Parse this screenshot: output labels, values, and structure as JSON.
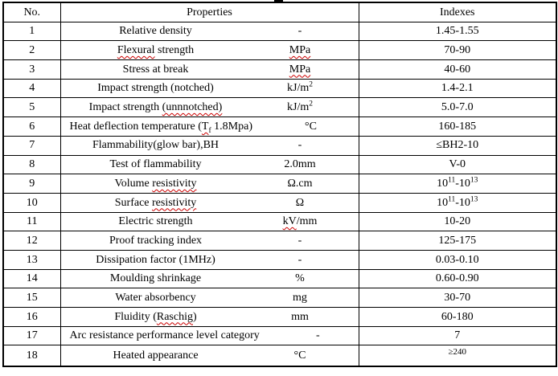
{
  "table": {
    "headers": {
      "no": "No.",
      "properties": "Properties",
      "indexes": "Indexes"
    },
    "rows": [
      {
        "no": "1",
        "property": "Relative density",
        "unit": "-",
        "index": "1.45-1.55"
      },
      {
        "no": "2",
        "property": "~{Flexural} strength",
        "unit": "~{MPa}",
        "index": "70-90"
      },
      {
        "no": "3",
        "property": "Stress at break",
        "unit": "~{MPa}",
        "index": "40-60"
      },
      {
        "no": "4",
        "property": "Impact strength (notched)",
        "unit": "kJ/m^{2}",
        "index": "1.4-2.1"
      },
      {
        "no": "5",
        "property": "Impact strength ~{(unnnotched)}",
        "unit": "kJ/m^{2}",
        "index": "5.0-7.0"
      },
      {
        "no": "6",
        "property": "Heat deflection temperature (~{T_{f}} 1.8Mpa)",
        "unit": "°C",
        "index": "160-185"
      },
      {
        "no": "7",
        "property": "Flammability(glow bar),BH",
        "unit": "-",
        "index": "≤BH2-10"
      },
      {
        "no": "8",
        "property": "Test of flammability",
        "unit": "2.0mm",
        "index": "V-0"
      },
      {
        "no": "9",
        "property": "Volume ~{resistivity}",
        "unit": "Ω.cm",
        "index": "10^{11}-10^{13}"
      },
      {
        "no": "10",
        "property": "Surface ~{resistivity}",
        "unit": "Ω",
        "index": "10^{11}-10^{13}"
      },
      {
        "no": "11",
        "property": "Electric strength",
        "unit": "~{kV}/mm",
        "index": "10-20"
      },
      {
        "no": "12",
        "property": "Proof tracking index",
        "unit": "-",
        "index": "125-175"
      },
      {
        "no": "13",
        "property": "Dissipation factor (1MHz)",
        "unit": "-",
        "index": "0.03-0.10"
      },
      {
        "no": "14",
        "property": "Moulding shrinkage",
        "unit": "%",
        "index": "0.60-0.90"
      },
      {
        "no": "15",
        "property": "Water absorbency",
        "unit": "mg",
        "index": "30-70"
      },
      {
        "no": "16",
        "property": "Fluidity (~{Raschig})",
        "unit": "mm",
        "index": "60-180"
      },
      {
        "no": "17",
        "property": "Arc resistance performance level category",
        "unit": "-",
        "index": "7"
      },
      {
        "no": "18",
        "property": "Heated appearance",
        "unit": "°C",
        "index": "≥240",
        "small_index": true
      }
    ],
    "colors": {
      "border": "#000000",
      "text": "#000000",
      "spellcheck_squiggle": "#cc0000",
      "background": "#ffffff"
    }
  }
}
